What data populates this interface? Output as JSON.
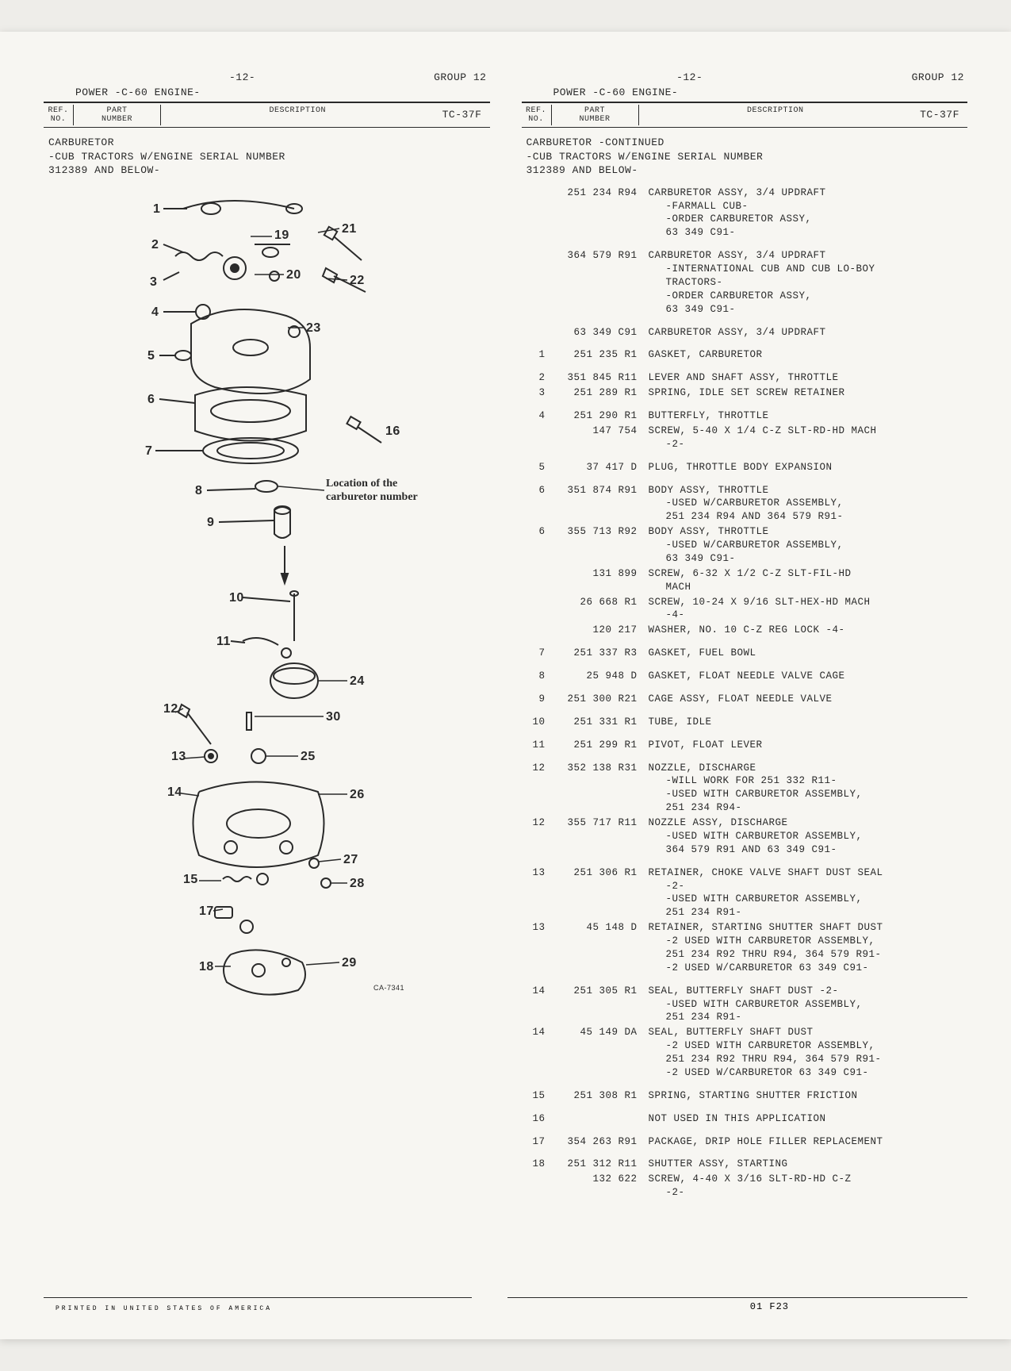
{
  "page_header": {
    "page_num": "-12-",
    "group": "GROUP 12",
    "engine": "POWER -C-60 ENGINE-",
    "tc": "TC-37F"
  },
  "column_headers": {
    "ref": "REF.\nNO.",
    "part": "PART\nNUMBER",
    "desc": "DESCRIPTION"
  },
  "left_section": {
    "lines": [
      "CARBURETOR",
      "-CUB TRACTORS W/ENGINE SERIAL NUMBER",
      "312389 AND BELOW-"
    ]
  },
  "right_section": {
    "lines": [
      "CARBURETOR  -CONTINUED",
      "-CUB TRACTORS W/ENGINE SERIAL NUMBER",
      "312389 AND BELOW-"
    ]
  },
  "diagram": {
    "caption1": "Location of the",
    "caption2": "carburetor number",
    "small_label": "CA-7341",
    "callouts": [
      "1",
      "2",
      "3",
      "4",
      "5",
      "6",
      "7",
      "8",
      "9",
      "10",
      "11",
      "12",
      "13",
      "14",
      "15",
      "16",
      "17",
      "18",
      "19",
      "20",
      "21",
      "22",
      "23",
      "24",
      "25",
      "26",
      "27",
      "28",
      "29",
      "30"
    ]
  },
  "rows": [
    {
      "ref": "",
      "part": "251 234 R94",
      "desc": "CARBURETOR ASSY, 3/4 UPDRAFT",
      "subs": [
        "-FARMALL CUB-",
        "-ORDER CARBURETOR ASSY,",
        "63 349 C91-"
      ]
    },
    {
      "spacer": true
    },
    {
      "ref": "",
      "part": "364 579 R91",
      "desc": "CARBURETOR ASSY, 3/4 UPDRAFT",
      "subs": [
        "-INTERNATIONAL CUB AND CUB LO-BOY",
        "TRACTORS-",
        "-ORDER CARBURETOR ASSY,",
        "63 349 C91-"
      ]
    },
    {
      "spacer": true
    },
    {
      "ref": "",
      "part": "63 349 C91",
      "desc": "CARBURETOR ASSY, 3/4 UPDRAFT"
    },
    {
      "spacer": true
    },
    {
      "ref": "1",
      "part": "251 235 R1",
      "desc": "GASKET, CARBURETOR"
    },
    {
      "spacer": true
    },
    {
      "ref": "2",
      "part": "351 845 R11",
      "desc": "LEVER AND SHAFT ASSY, THROTTLE"
    },
    {
      "ref": "3",
      "part": "251 289 R1",
      "desc": "SPRING, IDLE SET SCREW RETAINER"
    },
    {
      "spacer": true
    },
    {
      "ref": "4",
      "part": "251 290 R1",
      "desc": "BUTTERFLY, THROTTLE"
    },
    {
      "ref": "",
      "part": "147 754",
      "desc": "  SCREW, 5-40 X 1/4 C-Z SLT-RD-HD MACH",
      "subs": [
        "-2-"
      ]
    },
    {
      "spacer": true
    },
    {
      "ref": "5",
      "part": "37 417 D",
      "desc": "PLUG, THROTTLE BODY EXPANSION"
    },
    {
      "spacer": true
    },
    {
      "ref": "6",
      "part": "351 874 R91",
      "desc": "BODY ASSY, THROTTLE",
      "subs": [
        "-USED W/CARBURETOR ASSEMBLY,",
        "251 234 R94 AND 364 579 R91-"
      ]
    },
    {
      "ref": "6",
      "part": "355 713 R92",
      "desc": "BODY ASSY, THROTTLE",
      "subs": [
        "-USED W/CARBURETOR ASSEMBLY,",
        "63 349 C91-"
      ]
    },
    {
      "ref": "",
      "part": "131 899",
      "desc": "  SCREW, 6-32 X 1/2 C-Z SLT-FIL-HD",
      "subs": [
        "MACH"
      ]
    },
    {
      "ref": "",
      "part": "26 668 R1",
      "desc": "  SCREW, 10-24 X 9/16 SLT-HEX-HD MACH",
      "subs": [
        "-4-"
      ]
    },
    {
      "ref": "",
      "part": "120 217",
      "desc": "  WASHER, NO. 10 C-Z REG LOCK -4-"
    },
    {
      "spacer": true
    },
    {
      "ref": "7",
      "part": "251 337 R3",
      "desc": "GASKET, FUEL BOWL"
    },
    {
      "spacer": true
    },
    {
      "ref": "8",
      "part": "25 948 D",
      "desc": "GASKET, FLOAT NEEDLE VALVE CAGE"
    },
    {
      "spacer": true
    },
    {
      "ref": "9",
      "part": "251 300 R21",
      "desc": "CAGE ASSY, FLOAT NEEDLE VALVE"
    },
    {
      "spacer": true
    },
    {
      "ref": "10",
      "part": "251 331 R1",
      "desc": "TUBE, IDLE"
    },
    {
      "spacer": true
    },
    {
      "ref": "11",
      "part": "251 299 R1",
      "desc": "PIVOT, FLOAT LEVER"
    },
    {
      "spacer": true
    },
    {
      "ref": "12",
      "part": "352 138 R31",
      "desc": "NOZZLE, DISCHARGE",
      "subs": [
        "-WILL WORK FOR 251 332 R11-",
        "-USED WITH CARBURETOR ASSEMBLY,",
        "251 234 R94-"
      ]
    },
    {
      "ref": "12",
      "part": "355 717 R11",
      "desc": "NOZZLE ASSY, DISCHARGE",
      "subs": [
        "-USED WITH CARBURETOR ASSEMBLY,",
        "364 579 R91 AND 63 349 C91-"
      ]
    },
    {
      "spacer": true
    },
    {
      "ref": "13",
      "part": "251 306 R1",
      "desc": "RETAINER, CHOKE VALVE SHAFT DUST SEAL",
      "subs": [
        "-2-",
        "-USED WITH CARBURETOR ASSEMBLY,",
        "251 234 R91-"
      ]
    },
    {
      "ref": "13",
      "part": "45 148 D",
      "desc": "RETAINER, STARTING SHUTTER SHAFT DUST",
      "subs": [
        "-2 USED WITH CARBURETOR ASSEMBLY,",
        "251 234 R92 THRU R94, 364 579 R91-",
        "-2 USED W/CARBURETOR 63 349 C91-"
      ]
    },
    {
      "spacer": true
    },
    {
      "ref": "14",
      "part": "251 305 R1",
      "desc": "SEAL, BUTTERFLY SHAFT DUST -2-",
      "subs": [
        "-USED WITH CARBURETOR ASSEMBLY,",
        "251 234 R91-"
      ]
    },
    {
      "ref": "14",
      "part": "45 149 DA",
      "desc": "SEAL, BUTTERFLY SHAFT DUST",
      "subs": [
        "-2 USED WITH CARBURETOR ASSEMBLY,",
        "251 234 R92 THRU R94, 364 579 R91-",
        "-2 USED W/CARBURETOR 63 349 C91-"
      ]
    },
    {
      "spacer": true
    },
    {
      "ref": "15",
      "part": "251 308 R1",
      "desc": "SPRING, STARTING SHUTTER FRICTION"
    },
    {
      "spacer": true
    },
    {
      "ref": "16",
      "part": "",
      "desc": "NOT USED IN THIS APPLICATION"
    },
    {
      "spacer": true
    },
    {
      "ref": "17",
      "part": "354 263 R91",
      "desc": "PACKAGE, DRIP HOLE FILLER REPLACEMENT"
    },
    {
      "spacer": true
    },
    {
      "ref": "18",
      "part": "251 312 R11",
      "desc": "SHUTTER ASSY, STARTING"
    },
    {
      "ref": "",
      "part": "132 622",
      "desc": "  SCREW, 4-40 X 3/16 SLT-RD-HD C-Z",
      "subs": [
        "-2-"
      ]
    }
  ],
  "footer": {
    "left": "PRINTED IN UNITED STATES OF AMERICA",
    "right": "01 F23"
  }
}
